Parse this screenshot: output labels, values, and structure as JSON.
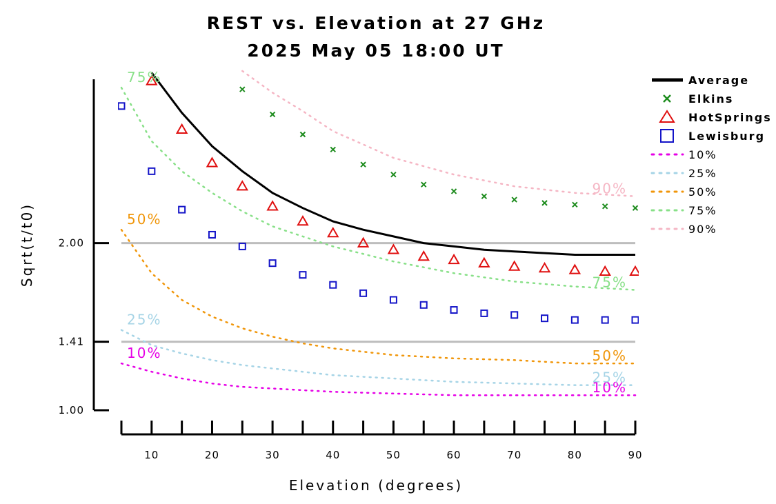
{
  "chart_data": {
    "type": "line",
    "title": "REST vs. Elevation at 27 GHz",
    "subtitle": "2025 May 05 18:00 UT",
    "xlabel": "Elevation (degrees)",
    "ylabel": "Sqrt(t/t0)",
    "xlim": [
      5,
      90
    ],
    "ylim": [
      1.0,
      2.98
    ],
    "x_ticks": [
      10,
      20,
      30,
      40,
      50,
      60,
      70,
      80,
      90
    ],
    "x_tick_labels": [
      "10",
      "20",
      "30",
      "40",
      "50",
      "60",
      "70",
      "80",
      "90"
    ],
    "y_ticks": [
      1.0,
      1.41,
      2.0
    ],
    "y_tick_labels": [
      "1.00",
      "1.41",
      "2.00"
    ],
    "reference_lines": [
      1.41,
      2.0
    ],
    "grid": false,
    "legend_position": "right",
    "legend": [
      "Average",
      "Elkins",
      "HotSprings",
      "Lewisburg",
      "10%",
      "25%",
      "50%",
      "75%",
      "90%"
    ],
    "series": [
      {
        "name": "Average",
        "style": "line",
        "color": "#000000",
        "x": [
          10,
          15,
          20,
          25,
          30,
          35,
          40,
          45,
          50,
          55,
          60,
          65,
          70,
          75,
          80,
          85,
          90
        ],
        "y": [
          3.02,
          2.78,
          2.58,
          2.43,
          2.3,
          2.21,
          2.13,
          2.08,
          2.04,
          2.0,
          1.98,
          1.96,
          1.95,
          1.94,
          1.93,
          1.93,
          1.93
        ]
      },
      {
        "name": "Elkins",
        "style": "marker",
        "marker": "x",
        "color": "#1e8c1e",
        "x": [
          25,
          30,
          35,
          40,
          45,
          50,
          55,
          60,
          65,
          70,
          75,
          80,
          85,
          90
        ],
        "y": [
          2.92,
          2.77,
          2.65,
          2.56,
          2.47,
          2.41,
          2.35,
          2.31,
          2.28,
          2.26,
          2.24,
          2.23,
          2.22,
          2.21
        ]
      },
      {
        "name": "HotSprings",
        "style": "marker",
        "marker": "triangle",
        "color": "#e01010",
        "x": [
          10,
          15,
          20,
          25,
          30,
          35,
          40,
          45,
          50,
          55,
          60,
          65,
          70,
          75,
          80,
          85,
          90
        ],
        "y": [
          2.97,
          2.68,
          2.48,
          2.34,
          2.22,
          2.13,
          2.06,
          2.0,
          1.96,
          1.92,
          1.9,
          1.88,
          1.86,
          1.85,
          1.84,
          1.83,
          1.83
        ]
      },
      {
        "name": "Lewisburg",
        "style": "marker",
        "marker": "square",
        "color": "#1414c8",
        "x": [
          5,
          10,
          15,
          20,
          25,
          30,
          35,
          40,
          45,
          50,
          55,
          60,
          65,
          70,
          75,
          80,
          85,
          90
        ],
        "y": [
          2.82,
          2.43,
          2.2,
          2.05,
          1.98,
          1.88,
          1.81,
          1.75,
          1.7,
          1.66,
          1.63,
          1.6,
          1.58,
          1.57,
          1.55,
          1.54,
          1.54,
          1.54
        ]
      },
      {
        "name": "10%",
        "style": "dotted",
        "color": "#e600e6",
        "label": "10%",
        "x": [
          5,
          10,
          15,
          20,
          25,
          30,
          40,
          50,
          60,
          70,
          80,
          90
        ],
        "y": [
          1.28,
          1.23,
          1.19,
          1.16,
          1.14,
          1.13,
          1.11,
          1.1,
          1.09,
          1.09,
          1.09,
          1.09
        ]
      },
      {
        "name": "25%",
        "style": "dotted",
        "color": "#a6d4e6",
        "label": "25%",
        "x": [
          5,
          10,
          15,
          20,
          25,
          30,
          40,
          50,
          60,
          70,
          80,
          90
        ],
        "y": [
          1.48,
          1.39,
          1.34,
          1.3,
          1.27,
          1.25,
          1.21,
          1.19,
          1.17,
          1.16,
          1.15,
          1.15
        ]
      },
      {
        "name": "50%",
        "style": "dotted",
        "color": "#f0960a",
        "label": "50%",
        "x": [
          5,
          10,
          15,
          20,
          25,
          30,
          35,
          40,
          50,
          60,
          70,
          80,
          90
        ],
        "y": [
          2.08,
          1.82,
          1.66,
          1.56,
          1.49,
          1.44,
          1.4,
          1.37,
          1.33,
          1.31,
          1.3,
          1.28,
          1.28
        ]
      },
      {
        "name": "75%",
        "style": "dotted",
        "color": "#88e088",
        "label": "75%",
        "x": [
          5,
          10,
          15,
          20,
          25,
          30,
          35,
          40,
          50,
          60,
          70,
          80,
          90
        ],
        "y": [
          2.93,
          2.61,
          2.43,
          2.3,
          2.19,
          2.1,
          2.04,
          1.98,
          1.89,
          1.82,
          1.77,
          1.74,
          1.72
        ]
      },
      {
        "name": "90%",
        "style": "dotted",
        "color": "#f5b6c4",
        "label": "90%",
        "x": [
          25,
          30,
          35,
          40,
          50,
          60,
          70,
          80,
          90
        ],
        "y": [
          3.03,
          2.9,
          2.79,
          2.67,
          2.51,
          2.41,
          2.34,
          2.3,
          2.28
        ]
      }
    ]
  }
}
